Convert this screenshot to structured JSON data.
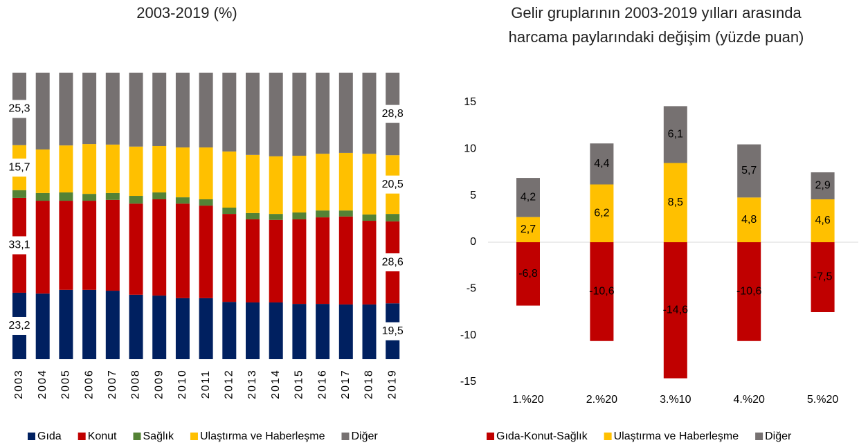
{
  "chart_data": [
    {
      "type": "bar",
      "stacked": true,
      "title": "2003-2019 (%)",
      "categories": [
        "2003",
        "2004",
        "2005",
        "2006",
        "2007",
        "2008",
        "2009",
        "2010",
        "2011",
        "2012",
        "2013",
        "2014",
        "2015",
        "2016",
        "2017",
        "2018",
        "2019"
      ],
      "ylim": [
        0,
        100
      ],
      "series": [
        {
          "name": "Gıda",
          "color": "#002060",
          "values": [
            23.2,
            22.9,
            24.2,
            24.2,
            23.9,
            22.5,
            22.2,
            21.3,
            21.3,
            20.0,
            19.8,
            19.8,
            19.3,
            19.3,
            19.1,
            19.1,
            19.5
          ],
          "value_labels": [
            "23,2",
            null,
            null,
            null,
            null,
            null,
            null,
            null,
            null,
            null,
            null,
            null,
            null,
            null,
            null,
            null,
            "19,5"
          ]
        },
        {
          "name": "Konut",
          "color": "#c00000",
          "values": [
            33.1,
            32.4,
            31.1,
            31.1,
            31.7,
            31.8,
            33.6,
            33.0,
            32.3,
            30.7,
            29.0,
            28.8,
            29.5,
            30.2,
            30.7,
            29.2,
            28.6
          ],
          "value_labels": [
            "33,1",
            null,
            null,
            null,
            null,
            null,
            null,
            null,
            null,
            null,
            null,
            null,
            null,
            null,
            null,
            null,
            "28,6"
          ]
        },
        {
          "name": "Sağlık",
          "color": "#548235",
          "values": [
            2.7,
            2.7,
            2.9,
            2.4,
            2.4,
            2.7,
            2.4,
            2.2,
            2.2,
            2.2,
            2.2,
            2.1,
            2.4,
            2.4,
            2.1,
            2.2,
            2.6
          ]
        },
        {
          "name": "Ulaştırma ve Haberleşme",
          "color": "#ffc000",
          "values": [
            15.7,
            15.2,
            16.4,
            17.4,
            16.9,
            17.2,
            16.2,
            17.4,
            18.1,
            19.6,
            20.3,
            20.1,
            19.8,
            19.8,
            20.1,
            21.2,
            20.5
          ],
          "value_labels": [
            "15,7",
            null,
            null,
            null,
            null,
            null,
            null,
            null,
            null,
            null,
            null,
            null,
            null,
            null,
            null,
            null,
            "20,5"
          ]
        },
        {
          "name": "Diğer",
          "color": "#767171",
          "values": [
            25.3,
            26.8,
            25.4,
            24.9,
            25.1,
            25.8,
            25.6,
            26.1,
            26.1,
            27.5,
            28.7,
            29.2,
            29.0,
            28.3,
            28.0,
            28.3,
            28.8
          ],
          "value_labels": [
            "25,3",
            null,
            null,
            null,
            null,
            null,
            null,
            null,
            null,
            null,
            null,
            null,
            null,
            null,
            null,
            null,
            "28,8"
          ]
        }
      ]
    },
    {
      "type": "bar",
      "stacked": true,
      "title": [
        "Gelir gruplarının 2003-2019 yılları arasında",
        "harcama paylarındaki değişim (yüzde puan)"
      ],
      "categories": [
        "1.%20",
        "2.%20",
        "3.%10",
        "4.%20",
        "5.%20"
      ],
      "ylim": [
        -15,
        15
      ],
      "yticks": [
        -15,
        -10,
        -5,
        0,
        5,
        10,
        15
      ],
      "series": [
        {
          "name": "Gıda-Konut-Sağlık",
          "color": "#c00000",
          "values": [
            -6.8,
            -10.6,
            -14.6,
            -10.6,
            -7.5
          ],
          "value_labels": [
            "-6,8",
            "-10,6",
            "-14,6",
            "-10,6",
            "-7,5"
          ]
        },
        {
          "name": "Ulaştırma ve Haberleşme",
          "color": "#ffc000",
          "values": [
            2.7,
            6.2,
            8.5,
            4.8,
            4.6
          ],
          "value_labels": [
            "2,7",
            "6,2",
            "8,5",
            "4,8",
            "4,6"
          ]
        },
        {
          "name": "Diğer",
          "color": "#767171",
          "values": [
            4.2,
            4.4,
            6.1,
            5.7,
            2.9
          ],
          "value_labels": [
            "4,2",
            "4,4",
            "6,1",
            "5,7",
            "2,9"
          ]
        }
      ]
    }
  ]
}
